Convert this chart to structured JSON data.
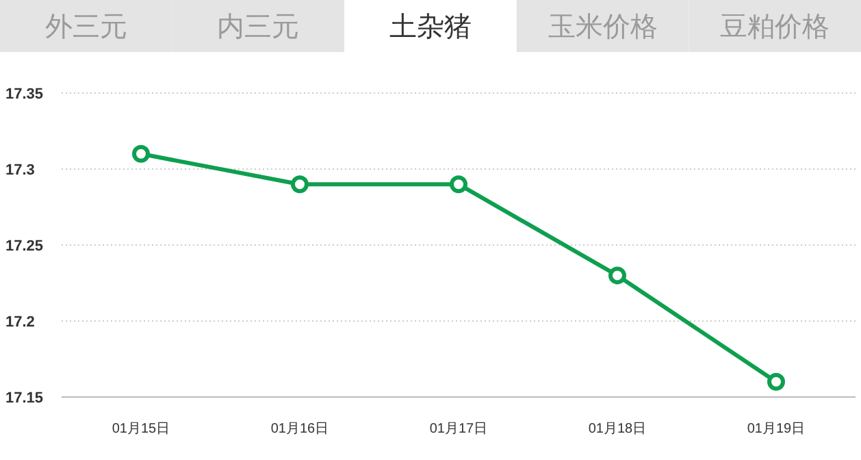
{
  "chart_data": {
    "type": "line",
    "title": "土杂猪",
    "annotations": [
      "外三元",
      "内三元",
      "玉米价格",
      "豆粕价格"
    ],
    "categories": [
      "01月15日",
      "01月16日",
      "01月17日",
      "01月18日",
      "01月19日"
    ],
    "series": [
      {
        "color": "#0e9f4f",
        "values": [
          17.31,
          17.29,
          17.29,
          17.23,
          17.16
        ]
      }
    ],
    "ylim": [
      17.15,
      17.35
    ],
    "yticks": [
      17.15,
      17.2,
      17.25,
      17.3,
      17.35
    ],
    "grid": "y",
    "marker": "circle",
    "line_style": "solid"
  }
}
